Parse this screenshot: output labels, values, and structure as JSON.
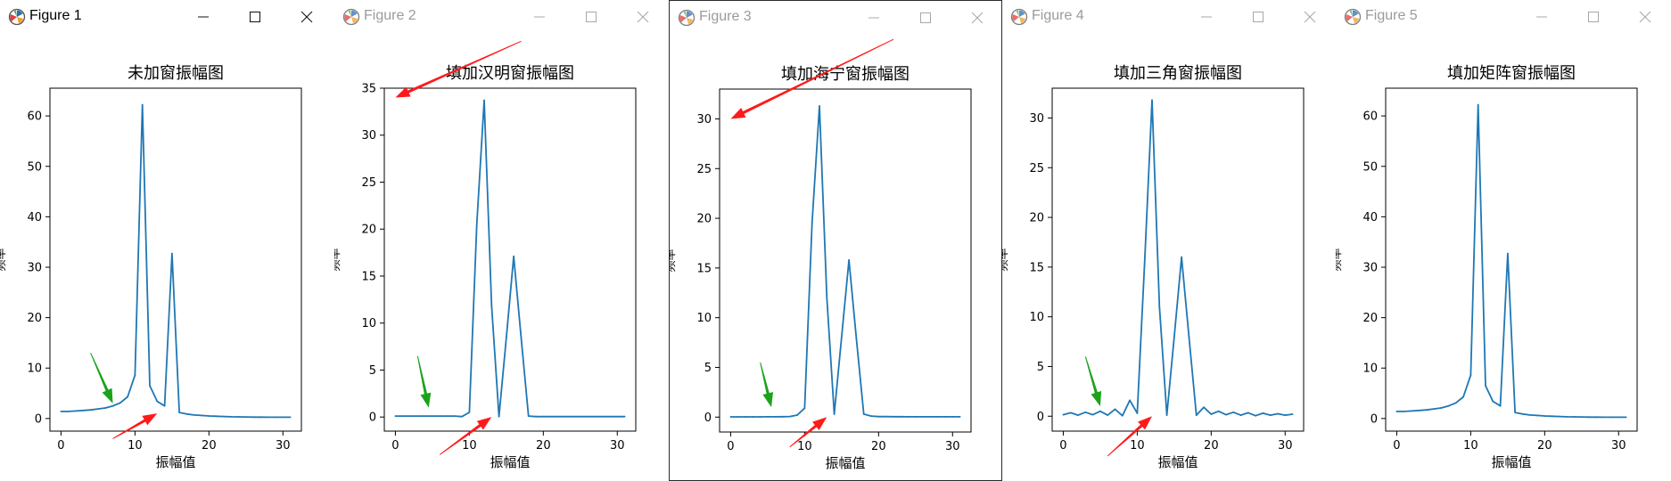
{
  "windows": [
    {
      "title": "Figure 1",
      "active": false,
      "dimmed": false
    },
    {
      "title": "Figure 2",
      "active": false,
      "dimmed": true
    },
    {
      "title": "Figure 3",
      "active": true,
      "dimmed": true
    },
    {
      "title": "Figure 4",
      "active": false,
      "dimmed": true
    },
    {
      "title": "Figure 5",
      "active": false,
      "dimmed": true
    }
  ],
  "icons": {
    "app": "matplotlib-icon",
    "minimize": "minimize-icon",
    "maximize": "maximize-icon",
    "close": "close-icon"
  },
  "colors": {
    "line": "#1f77b4",
    "arrow_red": "#ff1a1a",
    "arrow_green": "#1aa31a"
  },
  "chart_data": [
    {
      "type": "line",
      "title": "未加窗振幅图",
      "xlabel": "振幅值",
      "ylabel": "频率",
      "xlim": [
        -1.5,
        32.5
      ],
      "ylim": [
        -2.5,
        65.5
      ],
      "xticks": [
        0,
        10,
        20,
        30
      ],
      "yticks": [
        0,
        10,
        20,
        30,
        40,
        50,
        60
      ],
      "x": [
        0,
        1,
        2,
        3,
        4,
        5,
        6,
        7,
        8,
        9,
        10,
        11,
        12,
        13,
        14,
        15,
        16,
        17,
        18,
        19,
        20,
        21,
        22,
        23,
        24,
        25,
        26,
        27,
        28,
        29,
        30,
        31
      ],
      "y": [
        1.4,
        1.4,
        1.5,
        1.6,
        1.7,
        1.9,
        2.1,
        2.5,
        3.1,
        4.3,
        8.6,
        62.2,
        6.5,
        3.4,
        2.5,
        32.7,
        1.2,
        0.9,
        0.7,
        0.6,
        0.5,
        0.45,
        0.4,
        0.35,
        0.32,
        0.3,
        0.28,
        0.27,
        0.26,
        0.25,
        0.25,
        0.25
      ],
      "annotations": [
        {
          "kind": "arrow",
          "color": "red",
          "from": [
            7,
            -4
          ],
          "to": [
            13,
            1
          ]
        },
        {
          "kind": "arrow",
          "color": "green",
          "from": [
            4,
            13
          ],
          "to": [
            7,
            3
          ]
        }
      ]
    },
    {
      "type": "line",
      "title": "填加汉明窗振幅图",
      "xlabel": "振幅值",
      "ylabel": "频率",
      "xlim": [
        -1.5,
        32.5
      ],
      "ylim": [
        -1.5,
        35
      ],
      "xticks": [
        0,
        10,
        20,
        30
      ],
      "yticks": [
        0,
        5,
        10,
        15,
        20,
        25,
        30,
        35
      ],
      "x": [
        0,
        1,
        2,
        3,
        4,
        5,
        6,
        7,
        8,
        9,
        10,
        11,
        12,
        13,
        14,
        15,
        16,
        17,
        18,
        19,
        20,
        21,
        22,
        23,
        24,
        25,
        26,
        27,
        28,
        29,
        30,
        31
      ],
      "y": [
        0.1,
        0.1,
        0.1,
        0.1,
        0.1,
        0.1,
        0.1,
        0.1,
        0.1,
        0.05,
        0.5,
        20.5,
        33.7,
        11.9,
        0.05,
        8.5,
        17.1,
        8.5,
        0.1,
        0.05,
        0.05,
        0.05,
        0.05,
        0.05,
        0.05,
        0.05,
        0.05,
        0.05,
        0.05,
        0.05,
        0.05,
        0.05
      ],
      "annotations": [
        {
          "kind": "arrow",
          "color": "red",
          "from": [
            17,
            40
          ],
          "to": [
            0,
            34
          ]
        },
        {
          "kind": "arrow",
          "color": "red",
          "from": [
            6,
            -4
          ],
          "to": [
            13,
            0
          ]
        },
        {
          "kind": "arrow",
          "color": "green",
          "from": [
            3,
            6.5
          ],
          "to": [
            4.5,
            1
          ]
        }
      ]
    },
    {
      "type": "line",
      "title": "填加海宁窗振幅图",
      "xlabel": "振幅值",
      "ylabel": "频率",
      "xlim": [
        -1.5,
        32.5
      ],
      "ylim": [
        -1.5,
        33
      ],
      "xticks": [
        0,
        10,
        20,
        30
      ],
      "yticks": [
        0,
        5,
        10,
        15,
        20,
        25,
        30
      ],
      "x": [
        0,
        1,
        2,
        3,
        4,
        5,
        6,
        7,
        8,
        9,
        10,
        11,
        12,
        13,
        14,
        15,
        16,
        17,
        18,
        19,
        20,
        21,
        22,
        23,
        24,
        25,
        26,
        27,
        28,
        29,
        30,
        31
      ],
      "y": [
        0.02,
        0.02,
        0.02,
        0.02,
        0.02,
        0.03,
        0.03,
        0.04,
        0.06,
        0.2,
        0.9,
        19.5,
        31.3,
        12.0,
        0.3,
        8.1,
        15.8,
        7.9,
        0.3,
        0.1,
        0.05,
        0.05,
        0.04,
        0.04,
        0.03,
        0.03,
        0.03,
        0.03,
        0.03,
        0.03,
        0.03,
        0.03
      ],
      "annotations": [
        {
          "kind": "arrow",
          "color": "red",
          "from": [
            22,
            38
          ],
          "to": [
            0,
            30
          ]
        },
        {
          "kind": "arrow",
          "color": "red",
          "from": [
            8,
            -3
          ],
          "to": [
            13,
            0
          ]
        },
        {
          "kind": "arrow",
          "color": "green",
          "from": [
            4,
            5.5
          ],
          "to": [
            5.5,
            1
          ]
        }
      ]
    },
    {
      "type": "line",
      "title": "填加三角窗振幅图",
      "xlabel": "振幅值",
      "ylabel": "频率",
      "xlim": [
        -1.5,
        32.5
      ],
      "ylim": [
        -1.5,
        33
      ],
      "xticks": [
        0,
        10,
        20,
        30
      ],
      "yticks": [
        0,
        5,
        10,
        15,
        20,
        25,
        30
      ],
      "x": [
        0,
        1,
        2,
        3,
        4,
        5,
        6,
        7,
        8,
        9,
        10,
        11,
        12,
        13,
        14,
        15,
        16,
        17,
        18,
        19,
        20,
        21,
        22,
        23,
        24,
        25,
        26,
        27,
        28,
        29,
        30,
        31
      ],
      "y": [
        0.15,
        0.35,
        0.1,
        0.4,
        0.15,
        0.5,
        0.1,
        0.7,
        0.05,
        1.6,
        0.3,
        15.5,
        31.8,
        11.0,
        0.1,
        8.0,
        16.0,
        8.0,
        0.1,
        0.9,
        0.2,
        0.5,
        0.15,
        0.4,
        0.1,
        0.35,
        0.05,
        0.3,
        0.1,
        0.25,
        0.1,
        0.2
      ],
      "annotations": [
        {
          "kind": "arrow",
          "color": "red",
          "from": [
            6,
            -4
          ],
          "to": [
            12,
            0
          ]
        },
        {
          "kind": "arrow",
          "color": "green",
          "from": [
            3,
            6
          ],
          "to": [
            5,
            1
          ]
        }
      ]
    },
    {
      "type": "line",
      "title": "填加矩阵窗振幅图",
      "xlabel": "振幅值",
      "ylabel": "频率",
      "xlim": [
        -1.5,
        32.5
      ],
      "ylim": [
        -2.5,
        65.5
      ],
      "xticks": [
        0,
        10,
        20,
        30
      ],
      "yticks": [
        0,
        10,
        20,
        30,
        40,
        50,
        60
      ],
      "x": [
        0,
        1,
        2,
        3,
        4,
        5,
        6,
        7,
        8,
        9,
        10,
        11,
        12,
        13,
        14,
        15,
        16,
        17,
        18,
        19,
        20,
        21,
        22,
        23,
        24,
        25,
        26,
        27,
        28,
        29,
        30,
        31
      ],
      "y": [
        1.4,
        1.4,
        1.5,
        1.6,
        1.7,
        1.9,
        2.1,
        2.5,
        3.1,
        4.3,
        8.6,
        62.2,
        6.5,
        3.4,
        2.5,
        32.7,
        1.2,
        0.9,
        0.7,
        0.6,
        0.5,
        0.45,
        0.4,
        0.35,
        0.32,
        0.3,
        0.28,
        0.27,
        0.26,
        0.25,
        0.25,
        0.25
      ],
      "annotations": []
    }
  ]
}
